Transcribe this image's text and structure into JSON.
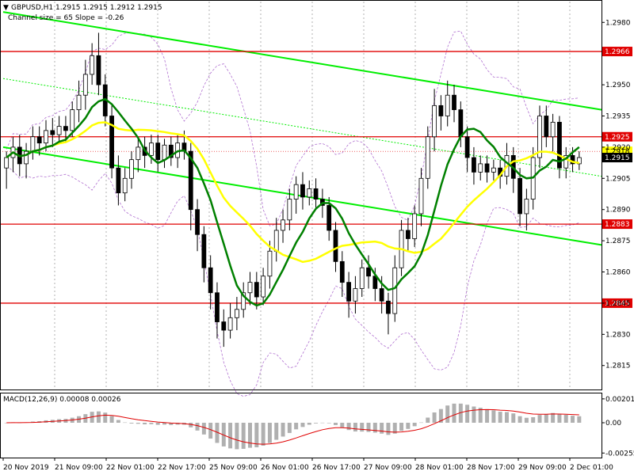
{
  "header": {
    "symbol_line": "GBPUSD,H1  1.2915 1.2915 1.2912 1.2915",
    "channel_line": "Channel size = 65 Slope = -0.26"
  },
  "macd": {
    "label": "MACD(12,26,9) 0.00008 0.00026"
  },
  "colors": {
    "bull": "#000000",
    "bear": "#000000",
    "channel": "#00ee00",
    "ma_fast": "#008000",
    "ma_slow": "#ffff00",
    "level": "#e00000",
    "bollinger": "#b070d0",
    "macd_hist": "#b0b0b0",
    "macd_signal": "#e00000"
  },
  "chart_data": {
    "type": "candlestick",
    "symbol": "GBPUSD",
    "timeframe": "H1",
    "ylim": [
      1.2805,
      1.299
    ],
    "y_ticks": [
      "1.2980",
      "1.2950",
      "1.2935",
      "1.2920",
      "1.2905",
      "1.2890",
      "1.2875",
      "1.2860",
      "1.2845",
      "1.2830",
      "1.2815"
    ],
    "x_ticks": [
      "20 Nov 2019",
      "21 Nov 09:00",
      "22 Nov 01:00",
      "22 Nov 17:00",
      "25 Nov 09:00",
      "26 Nov 01:00",
      "26 Nov 17:00",
      "27 Nov 09:00",
      "28 Nov 01:00",
      "28 Nov 17:00",
      "29 Nov 09:00",
      "2 Dec 01:00"
    ],
    "levels": [
      {
        "price": 1.2966,
        "label": "1.2966"
      },
      {
        "price": 1.2925,
        "label": "1.2925"
      },
      {
        "price": 1.2883,
        "label": "1.2883"
      },
      {
        "price": 1.2845,
        "label": "1.2845"
      }
    ],
    "current_price": {
      "price": 1.2915,
      "label": "1.2915"
    },
    "slow_ma_label": {
      "price": 1.2918,
      "label": "1.2918"
    },
    "macd_ylim": [
      -0.0028,
      0.0024
    ],
    "macd_ticks": [
      "0.00201",
      "0.00",
      "-0.00255"
    ],
    "candles": [
      [
        1.291,
        1.2915,
        1.29,
        1.2918
      ],
      [
        1.2915,
        1.292,
        1.2908,
        1.2925
      ],
      [
        1.292,
        1.2912,
        1.2906,
        1.2926
      ],
      [
        1.2912,
        1.2918,
        1.2905,
        1.2922
      ],
      [
        1.2918,
        1.2925,
        1.2914,
        1.293
      ],
      [
        1.2925,
        1.2922,
        1.2916,
        1.293
      ],
      [
        1.2922,
        1.2928,
        1.2918,
        1.2933
      ],
      [
        1.2928,
        1.2926,
        1.292,
        1.2934
      ],
      [
        1.2926,
        1.293,
        1.2922,
        1.2935
      ],
      [
        1.293,
        1.2928,
        1.2922,
        1.2935
      ],
      [
        1.2928,
        1.2938,
        1.2925,
        1.2942
      ],
      [
        1.2938,
        1.2945,
        1.2932,
        1.2952
      ],
      [
        1.2945,
        1.2955,
        1.2938,
        1.2962
      ],
      [
        1.2955,
        1.2964,
        1.295,
        1.297
      ],
      [
        1.2964,
        1.295,
        1.2945,
        1.2975
      ],
      [
        1.295,
        1.2935,
        1.293,
        1.2955
      ],
      [
        1.2935,
        1.291,
        1.2905,
        1.294
      ],
      [
        1.291,
        1.2898,
        1.2892,
        1.2916
      ],
      [
        1.2898,
        1.2905,
        1.2894,
        1.291
      ],
      [
        1.2905,
        1.2914,
        1.29,
        1.2918
      ],
      [
        1.2914,
        1.292,
        1.2908,
        1.2924
      ],
      [
        1.292,
        1.2916,
        1.291,
        1.2925
      ],
      [
        1.2916,
        1.2922,
        1.2912,
        1.2926
      ],
      [
        1.2922,
        1.2914,
        1.2908,
        1.2926
      ],
      [
        1.2914,
        1.2921,
        1.291,
        1.2924
      ],
      [
        1.2921,
        1.2915,
        1.2911,
        1.2925
      ],
      [
        1.2915,
        1.2922,
        1.291,
        1.2926
      ],
      [
        1.2922,
        1.2918,
        1.2914,
        1.2928
      ],
      [
        1.2918,
        1.289,
        1.288,
        1.2922
      ],
      [
        1.289,
        1.2878,
        1.287,
        1.2895
      ],
      [
        1.2878,
        1.2862,
        1.2855,
        1.2882
      ],
      [
        1.2862,
        1.285,
        1.2842,
        1.2868
      ],
      [
        1.285,
        1.2836,
        1.2828,
        1.2855
      ],
      [
        1.2836,
        1.2832,
        1.2824,
        1.2842
      ],
      [
        1.2832,
        1.2838,
        1.2828,
        1.2845
      ],
      [
        1.2838,
        1.2842,
        1.2832,
        1.2848
      ],
      [
        1.2842,
        1.285,
        1.2838,
        1.2855
      ],
      [
        1.285,
        1.2855,
        1.2844,
        1.286
      ],
      [
        1.2855,
        1.2848,
        1.2842,
        1.286
      ],
      [
        1.2848,
        1.2858,
        1.2844,
        1.2862
      ],
      [
        1.2858,
        1.287,
        1.2852,
        1.2875
      ],
      [
        1.287,
        1.288,
        1.2865,
        1.2886
      ],
      [
        1.288,
        1.2885,
        1.2874,
        1.289
      ],
      [
        1.2885,
        1.2895,
        1.288,
        1.29
      ],
      [
        1.2895,
        1.2902,
        1.2888,
        1.2906
      ],
      [
        1.2902,
        1.2896,
        1.289,
        1.2908
      ],
      [
        1.2896,
        1.29,
        1.2892,
        1.2904
      ],
      [
        1.29,
        1.2895,
        1.289,
        1.2905
      ],
      [
        1.2895,
        1.2892,
        1.2886,
        1.29
      ],
      [
        1.2892,
        1.288,
        1.2875,
        1.2896
      ],
      [
        1.288,
        1.2865,
        1.286,
        1.2884
      ],
      [
        1.2865,
        1.2855,
        1.2848,
        1.287
      ],
      [
        1.2855,
        1.2846,
        1.2838,
        1.286
      ],
      [
        1.2846,
        1.2852,
        1.284,
        1.2858
      ],
      [
        1.2852,
        1.2862,
        1.2848,
        1.2866
      ],
      [
        1.2862,
        1.2858,
        1.2852,
        1.2868
      ],
      [
        1.2858,
        1.2852,
        1.2846,
        1.2862
      ],
      [
        1.2852,
        1.2846,
        1.284,
        1.2858
      ],
      [
        1.2846,
        1.284,
        1.283,
        1.285
      ],
      [
        1.284,
        1.2862,
        1.2836,
        1.2868
      ],
      [
        1.2862,
        1.288,
        1.2858,
        1.2885
      ],
      [
        1.288,
        1.2876,
        1.287,
        1.2886
      ],
      [
        1.2876,
        1.2888,
        1.2872,
        1.2892
      ],
      [
        1.2888,
        1.2905,
        1.2882,
        1.291
      ],
      [
        1.2905,
        1.2925,
        1.29,
        1.293
      ],
      [
        1.2925,
        1.294,
        1.2918,
        1.2948
      ],
      [
        1.294,
        1.2935,
        1.2928,
        1.2945
      ],
      [
        1.2935,
        1.2945,
        1.293,
        1.2952
      ],
      [
        1.2945,
        1.2938,
        1.2932,
        1.295
      ],
      [
        1.2938,
        1.2925,
        1.292,
        1.2942
      ],
      [
        1.2925,
        1.2915,
        1.2908,
        1.293
      ],
      [
        1.2915,
        1.2908,
        1.2902,
        1.292
      ],
      [
        1.2908,
        1.2912,
        1.2904,
        1.2916
      ],
      [
        1.2912,
        1.2908,
        1.2903,
        1.2916
      ],
      [
        1.2908,
        1.291,
        1.2904,
        1.2914
      ],
      [
        1.291,
        1.2906,
        1.29,
        1.2914
      ],
      [
        1.2906,
        1.2916,
        1.2902,
        1.2922
      ],
      [
        1.2916,
        1.2905,
        1.2898,
        1.292
      ],
      [
        1.2905,
        1.2888,
        1.2882,
        1.291
      ],
      [
        1.2888,
        1.2895,
        1.288,
        1.29
      ],
      [
        1.2895,
        1.2915,
        1.289,
        1.292
      ],
      [
        1.2915,
        1.2935,
        1.291,
        1.294
      ],
      [
        1.2935,
        1.2925,
        1.292,
        1.294
      ],
      [
        1.2925,
        1.2932,
        1.2918,
        1.2936
      ],
      [
        1.2932,
        1.291,
        1.2905,
        1.2935
      ],
      [
        1.291,
        1.2916,
        1.2905,
        1.292
      ],
      [
        1.2916,
        1.2912,
        1.2908,
        1.292
      ],
      [
        1.2912,
        1.2915,
        1.2909,
        1.2918
      ]
    ]
  }
}
